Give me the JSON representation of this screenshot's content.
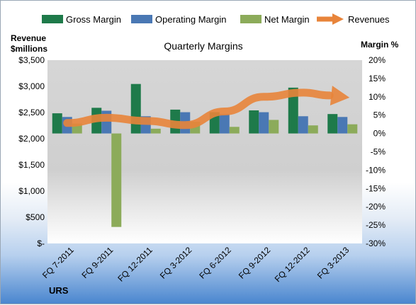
{
  "chart_data": {
    "type": "bar",
    "title": "Quarterly Margins",
    "company_label": "URS",
    "left_axis": {
      "title_line1": "Revenue",
      "title_line2": "$millions",
      "min": 0,
      "max": 3500,
      "ticks": [
        0,
        500,
        1000,
        1500,
        2000,
        2500,
        3000,
        3500
      ],
      "tick_labels": [
        "$-",
        "$500",
        "$1,000",
        "$1,500",
        "$2,000",
        "$2,500",
        "$3,000",
        "$3,500"
      ]
    },
    "right_axis": {
      "title": "Margin %",
      "min": -30,
      "max": 20,
      "ticks": [
        -30,
        -25,
        -20,
        -15,
        -10,
        -5,
        0,
        5,
        10,
        15,
        20
      ],
      "tick_labels": [
        "-30%",
        "-25%",
        "-20%",
        "-15%",
        "-10%",
        "-5%",
        "0%",
        "5%",
        "10%",
        "15%",
        "20%"
      ]
    },
    "categories": [
      "FQ 7-2011",
      "FQ 9-2011",
      "FQ 12-2011",
      "FQ 3-2012",
      "FQ 6-2012",
      "FQ 9-2012",
      "FQ 12-2012",
      "FQ 3-2013"
    ],
    "series": [
      {
        "name": "Gross Margin",
        "axis": "right",
        "kind": "bar",
        "color": "#1e7a4a",
        "values": [
          5.5,
          7.0,
          13.5,
          6.5,
          5.8,
          6.3,
          12.5,
          5.3
        ]
      },
      {
        "name": "Operating Margin",
        "axis": "right",
        "kind": "bar",
        "color": "#4a78b4",
        "values": [
          4.5,
          6.2,
          4.7,
          5.8,
          5.3,
          5.8,
          4.7,
          4.5
        ]
      },
      {
        "name": "Net Margin",
        "axis": "right",
        "kind": "bar",
        "color": "#8cab5a",
        "values": [
          2.7,
          -25.5,
          1.3,
          3.2,
          1.8,
          3.7,
          2.2,
          2.5
        ]
      },
      {
        "name": "Revenues",
        "axis": "left",
        "kind": "arrow",
        "color": "#e8843a",
        "values": [
          2300,
          2400,
          2340,
          2260,
          2520,
          2800,
          2880,
          2800
        ]
      }
    ],
    "legend_position": "top",
    "grid": false
  }
}
